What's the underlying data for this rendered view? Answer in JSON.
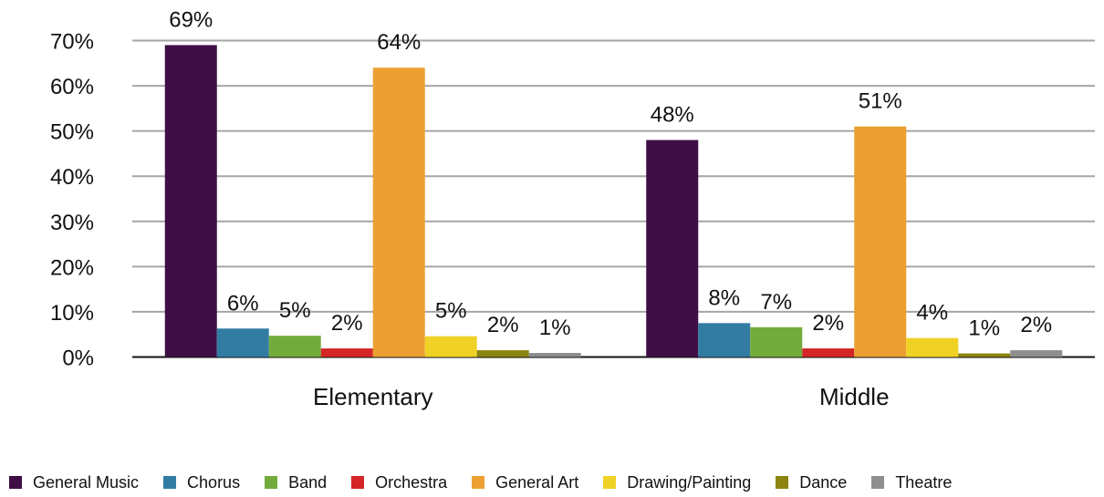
{
  "chart_data": {
    "type": "bar",
    "categories": [
      "Elementary",
      "Middle"
    ],
    "series": [
      {
        "name": "General Music",
        "color": "#3e0e45",
        "values": [
          69,
          48
        ],
        "labels": [
          "69%",
          "48%"
        ]
      },
      {
        "name": "Chorus",
        "color": "#327ca3",
        "values": [
          6.3,
          7.5
        ],
        "labels": [
          "6%",
          "8%"
        ]
      },
      {
        "name": "Band",
        "color": "#72ab3c",
        "values": [
          4.7,
          6.6
        ],
        "labels": [
          "5%",
          "7%"
        ]
      },
      {
        "name": "Orchestra",
        "color": "#d42626",
        "values": [
          1.9,
          1.9
        ],
        "labels": [
          "2%",
          "2%"
        ]
      },
      {
        "name": "General Art",
        "color": "#eba031",
        "values": [
          64,
          51
        ],
        "labels": [
          "64%",
          "51%"
        ]
      },
      {
        "name": "Drawing/Painting",
        "color": "#f0d227",
        "values": [
          4.6,
          4.2
        ],
        "labels": [
          "5%",
          "4%"
        ]
      },
      {
        "name": "Dance",
        "color": "#8c8410",
        "values": [
          1.5,
          0.8
        ],
        "labels": [
          "2%",
          "1%"
        ]
      },
      {
        "name": "Theatre",
        "color": "#8e8e8e",
        "values": [
          0.9,
          1.5
        ],
        "labels": [
          "1%",
          "2%"
        ]
      }
    ],
    "yticks": [
      "0%",
      "10%",
      "20%",
      "30%",
      "40%",
      "50%",
      "60%",
      "70%"
    ],
    "ylim": [
      0,
      70
    ],
    "grid": true,
    "legend": "bottom"
  }
}
